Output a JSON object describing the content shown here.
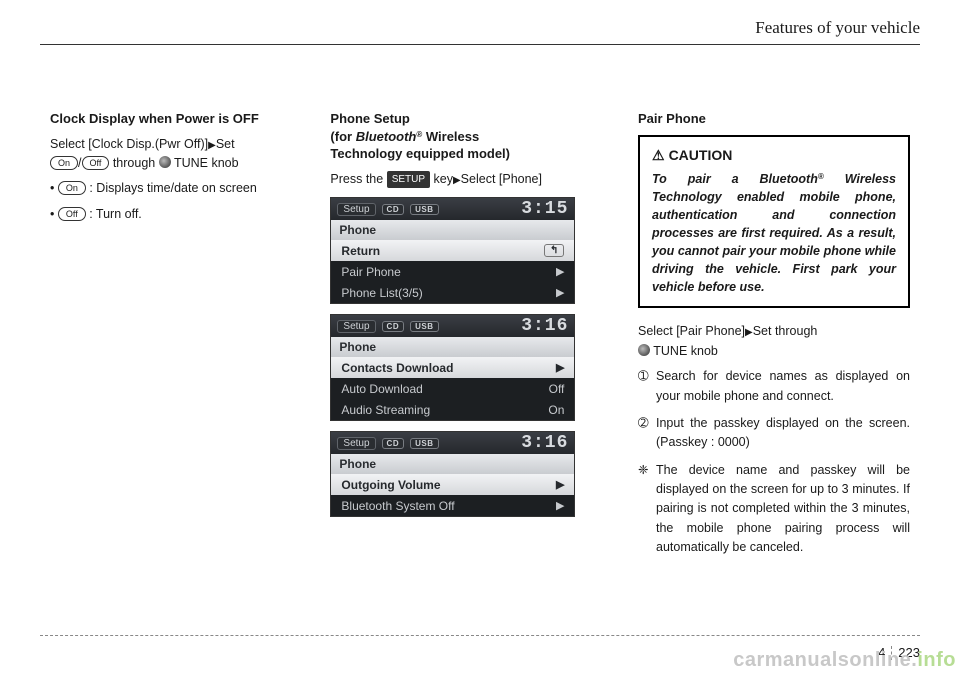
{
  "header": {
    "title": "Features of your vehicle"
  },
  "col1": {
    "title": "Clock Display when Power is OFF",
    "line1a": "Select [Clock Disp.(Pwr Off)]",
    "line1b": "Set",
    "pill_on": "On",
    "pill_off": "Off",
    "line2a": "/",
    "line2b": "through",
    "line2c": "TUNE knob",
    "b1": ": Displays time/date on screen",
    "b2": ": Turn off."
  },
  "col2": {
    "title": "Phone Setup\n(for Bluetooth® Wireless\nTechnology equipped model)",
    "title_l1": "Phone Setup",
    "title_l2_a": "(for ",
    "title_l2_b": "Bluetooth",
    "title_l2_c": " Wireless",
    "title_l3": "Technology equipped model)",
    "press_a": "Press the ",
    "press_key": "SETUP",
    "press_b": " key",
    "press_c": "Select [Phone]",
    "screens": [
      {
        "time": "3:15",
        "rows": [
          {
            "label": "Return",
            "right_type": "return",
            "active": true
          },
          {
            "label": "Pair Phone",
            "right_type": "arrow",
            "active": false
          },
          {
            "label": "Phone List(3/5)",
            "right_type": "arrow",
            "active": false
          }
        ]
      },
      {
        "time": "3:16",
        "rows": [
          {
            "label": "Contacts Download",
            "right_type": "arrow",
            "active": true
          },
          {
            "label": "Auto Download",
            "right_text": "Off",
            "active": false
          },
          {
            "label": "Audio Streaming",
            "right_text": "On",
            "active": false
          }
        ]
      },
      {
        "time": "3:16",
        "rows": [
          {
            "label": "Outgoing Volume",
            "right_type": "arrow",
            "active": true
          },
          {
            "label": "Bluetooth System Off",
            "right_type": "arrow",
            "active": false
          }
        ]
      }
    ],
    "screen_common": {
      "setup": "Setup",
      "cd": "CD",
      "usb": "USB",
      "phone": "Phone"
    }
  },
  "col3": {
    "title": "Pair Phone",
    "caution_title": "CAUTION",
    "caution_text_a": "To pair a Bluetooth",
    "caution_text_b": " Wireless Technology enabled mobile phone, authentication and connection processes are first required. As a result, you cannot pair your mobile phone while driving the vehicle. First park your vehicle before use.",
    "select_a": "Select [Pair Phone]",
    "select_b": "Set through",
    "select_c": "TUNE knob",
    "li1": "Search for device names as displayed on your mobile phone and connect.",
    "li2": "Input the passkey displayed on the screen. (Passkey : 0000)",
    "note": "The device name and passkey will be displayed on the screen for up to 3 minutes. If pairing is not completed within the 3 minutes, the mobile phone pairing process will automatically be canceled."
  },
  "footer": {
    "chapter": "4",
    "page": "223"
  },
  "watermark": {
    "a": "carmanualsonline.",
    "b": "info"
  }
}
